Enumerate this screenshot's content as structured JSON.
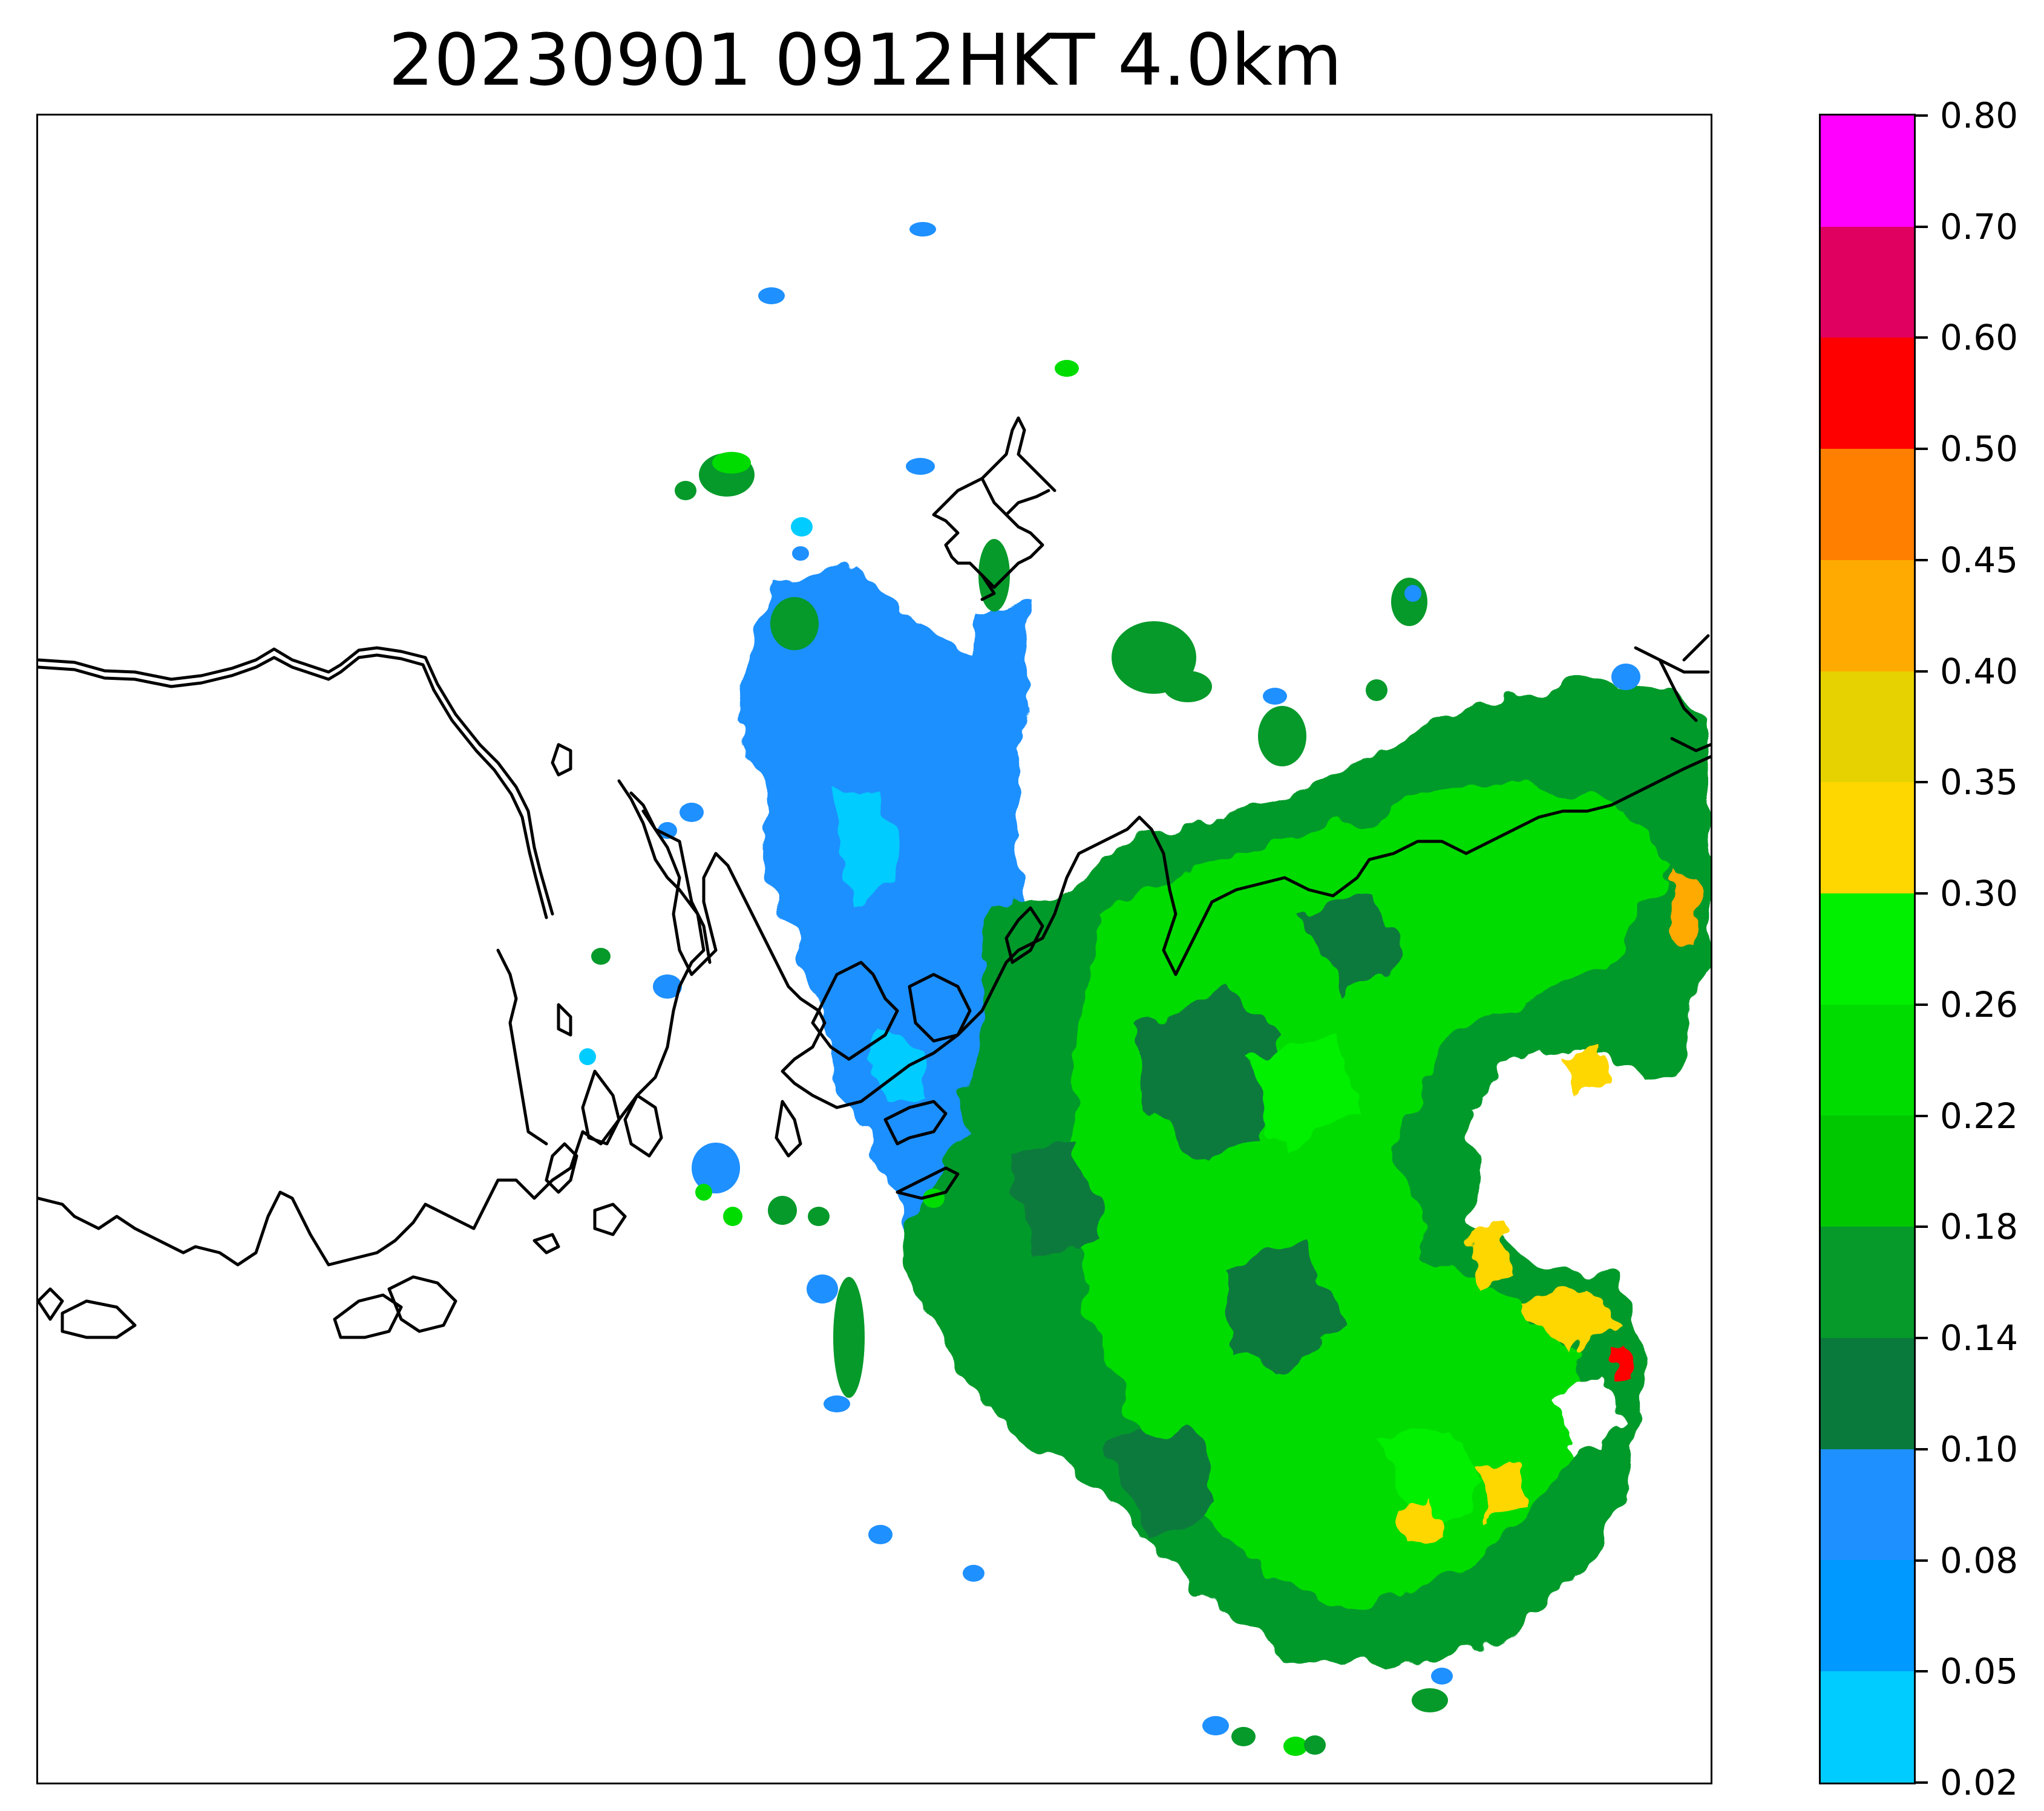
{
  "title": "20230901 0912HKT 4.0km",
  "colorbar": {
    "levels": [
      "0.02",
      "0.05",
      "0.08",
      "0.10",
      "0.14",
      "0.18",
      "0.22",
      "0.26",
      "0.30",
      "0.35",
      "0.40",
      "0.45",
      "0.50",
      "0.60",
      "0.70",
      "0.80"
    ],
    "colors": [
      "#00ccff",
      "#0099ff",
      "#1e90ff",
      "#0a7a3c",
      "#059a2a",
      "#00c800",
      "#00dc00",
      "#00f000",
      "#ffd700",
      "#e6d200",
      "#ffaa00",
      "#ff7f00",
      "#ff0000",
      "#e00060",
      "#ff00ff"
    ]
  },
  "legend": {
    "coastline_color": "#000000"
  }
}
